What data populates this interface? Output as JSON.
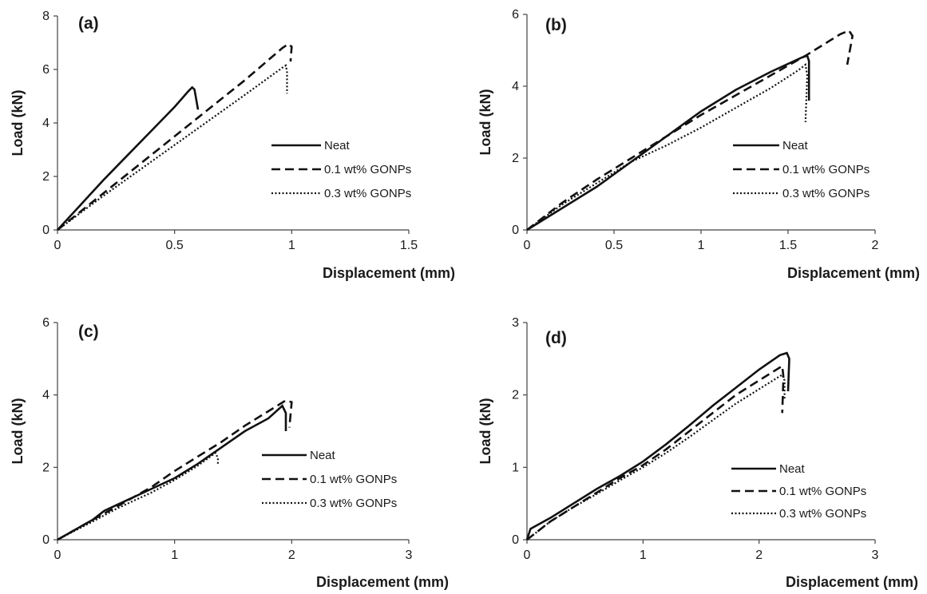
{
  "chart_data": [
    {
      "panel": "(a)",
      "type": "line",
      "xlabel": "Displacement (mm)",
      "ylabel": "Load (kN)",
      "xlim": [
        0,
        1.5
      ],
      "ylim": [
        0,
        8
      ],
      "xticks": [
        "0",
        "0.5",
        "1",
        "1.5"
      ],
      "yticks": [
        "0",
        "2",
        "4",
        "6",
        "8"
      ],
      "legend": "center-right",
      "series": [
        {
          "name": "Neat",
          "style": "solid",
          "points": [
            [
              0,
              0
            ],
            [
              0.1,
              0.95
            ],
            [
              0.2,
              1.9
            ],
            [
              0.3,
              2.8
            ],
            [
              0.4,
              3.7
            ],
            [
              0.5,
              4.6
            ],
            [
              0.56,
              5.2
            ],
            [
              0.575,
              5.33
            ],
            [
              0.585,
              5.25
            ],
            [
              0.6,
              4.5
            ]
          ]
        },
        {
          "name": "0.1 wt% GONPs",
          "style": "dashed",
          "points": [
            [
              0,
              0
            ],
            [
              0.2,
              1.4
            ],
            [
              0.4,
              2.8
            ],
            [
              0.6,
              4.2
            ],
            [
              0.8,
              5.6
            ],
            [
              0.96,
              6.8
            ],
            [
              0.985,
              6.95
            ],
            [
              1.0,
              6.85
            ],
            [
              0.995,
              6.3
            ]
          ]
        },
        {
          "name": "0.3 wt% GONPs",
          "style": "dotted",
          "points": [
            [
              0,
              0
            ],
            [
              0.2,
              1.3
            ],
            [
              0.4,
              2.55
            ],
            [
              0.6,
              3.8
            ],
            [
              0.8,
              5.05
            ],
            [
              0.965,
              6.1
            ],
            [
              0.975,
              6.15
            ],
            [
              0.98,
              5.9
            ],
            [
              0.98,
              5.1
            ]
          ]
        }
      ]
    },
    {
      "panel": "(b)",
      "type": "line",
      "xlabel": "Displacement (mm)",
      "ylabel": "Load (kN)",
      "xlim": [
        0,
        2
      ],
      "ylim": [
        0,
        6
      ],
      "xticks": [
        "0",
        "0.5",
        "1",
        "1.5",
        "2"
      ],
      "yticks": [
        "0",
        "2",
        "4",
        "6"
      ],
      "legend": "center-right",
      "series": [
        {
          "name": "Neat",
          "style": "solid",
          "points": [
            [
              0,
              0
            ],
            [
              0.2,
              0.6
            ],
            [
              0.4,
              1.2
            ],
            [
              0.6,
              1.9
            ],
            [
              0.8,
              2.6
            ],
            [
              1.0,
              3.3
            ],
            [
              1.2,
              3.9
            ],
            [
              1.4,
              4.4
            ],
            [
              1.58,
              4.8
            ],
            [
              1.61,
              4.85
            ],
            [
              1.62,
              4.7
            ],
            [
              1.62,
              3.6
            ]
          ]
        },
        {
          "name": "0.1 wt% GONPs",
          "style": "dashed",
          "points": [
            [
              0,
              0
            ],
            [
              0.2,
              0.75
            ],
            [
              0.4,
              1.4
            ],
            [
              0.6,
              2.0
            ],
            [
              0.8,
              2.6
            ],
            [
              1.0,
              3.2
            ],
            [
              1.2,
              3.75
            ],
            [
              1.4,
              4.3
            ],
            [
              1.6,
              4.85
            ],
            [
              1.8,
              5.45
            ],
            [
              1.85,
              5.55
            ],
            [
              1.87,
              5.4
            ],
            [
              1.84,
              4.6
            ]
          ]
        },
        {
          "name": "0.3 wt% GONPs",
          "style": "dotted",
          "points": [
            [
              0,
              0
            ],
            [
              0.2,
              0.7
            ],
            [
              0.4,
              1.3
            ],
            [
              0.6,
              1.9
            ],
            [
              0.8,
              2.35
            ],
            [
              1.0,
              2.85
            ],
            [
              1.2,
              3.4
            ],
            [
              1.4,
              3.95
            ],
            [
              1.56,
              4.45
            ],
            [
              1.6,
              4.6
            ],
            [
              1.61,
              4.3
            ],
            [
              1.6,
              3.0
            ]
          ]
        }
      ]
    },
    {
      "panel": "(c)",
      "type": "line",
      "xlabel": "Displacement (mm)",
      "ylabel": "Load (kN)",
      "xlim": [
        0,
        3
      ],
      "ylim": [
        0,
        6
      ],
      "xticks": [
        "0",
        "1",
        "2",
        "3"
      ],
      "yticks": [
        "0",
        "2",
        "4",
        "6"
      ],
      "legend": "center-right",
      "series": [
        {
          "name": "Neat",
          "style": "solid",
          "points": [
            [
              0,
              0
            ],
            [
              0.3,
              0.55
            ],
            [
              0.4,
              0.8
            ],
            [
              0.6,
              1.1
            ],
            [
              0.8,
              1.4
            ],
            [
              1.0,
              1.7
            ],
            [
              1.2,
              2.1
            ],
            [
              1.4,
              2.55
            ],
            [
              1.6,
              3.0
            ],
            [
              1.8,
              3.35
            ],
            [
              1.92,
              3.7
            ],
            [
              1.95,
              3.5
            ],
            [
              1.95,
              3.0
            ]
          ]
        },
        {
          "name": "0.1 wt% GONPs",
          "style": "dashed",
          "points": [
            [
              0,
              0
            ],
            [
              0.3,
              0.55
            ],
            [
              0.5,
              0.9
            ],
            [
              0.8,
              1.45
            ],
            [
              1.0,
              1.9
            ],
            [
              1.2,
              2.3
            ],
            [
              1.4,
              2.7
            ],
            [
              1.6,
              3.15
            ],
            [
              1.8,
              3.55
            ],
            [
              1.95,
              3.85
            ],
            [
              2.0,
              3.8
            ],
            [
              1.98,
              3.1
            ]
          ]
        },
        {
          "name": "0.3 wt% GONPs",
          "style": "dotted",
          "points": [
            [
              0,
              0
            ],
            [
              0.3,
              0.5
            ],
            [
              0.5,
              0.85
            ],
            [
              0.8,
              1.3
            ],
            [
              1.0,
              1.65
            ],
            [
              1.2,
              2.05
            ],
            [
              1.35,
              2.4
            ],
            [
              1.37,
              2.25
            ],
            [
              1.37,
              2.05
            ]
          ]
        }
      ]
    },
    {
      "panel": "(d)",
      "type": "line",
      "xlabel": "Displacement (mm)",
      "ylabel": "Load (kN)",
      "xlim": [
        0,
        3
      ],
      "ylim": [
        0,
        3
      ],
      "xticks": [
        "0",
        "1",
        "2",
        "3"
      ],
      "yticks": [
        "0",
        "1",
        "2",
        "3"
      ],
      "legend": "bottom-right",
      "series": [
        {
          "name": "Neat",
          "style": "solid",
          "points": [
            [
              0,
              0
            ],
            [
              0.03,
              0.15
            ],
            [
              0.2,
              0.3
            ],
            [
              0.4,
              0.5
            ],
            [
              0.6,
              0.7
            ],
            [
              0.8,
              0.88
            ],
            [
              1.0,
              1.08
            ],
            [
              1.2,
              1.32
            ],
            [
              1.4,
              1.58
            ],
            [
              1.6,
              1.85
            ],
            [
              1.8,
              2.1
            ],
            [
              2.0,
              2.35
            ],
            [
              2.18,
              2.55
            ],
            [
              2.24,
              2.58
            ],
            [
              2.26,
              2.5
            ],
            [
              2.25,
              2.05
            ]
          ]
        },
        {
          "name": "0.1 wt% GONPs",
          "style": "dashed",
          "points": [
            [
              0,
              0
            ],
            [
              0.2,
              0.25
            ],
            [
              0.4,
              0.45
            ],
            [
              0.6,
              0.65
            ],
            [
              0.8,
              0.85
            ],
            [
              1.0,
              1.03
            ],
            [
              1.2,
              1.25
            ],
            [
              1.4,
              1.5
            ],
            [
              1.6,
              1.75
            ],
            [
              1.8,
              2.0
            ],
            [
              2.0,
              2.2
            ],
            [
              2.2,
              2.4
            ],
            [
              2.21,
              2.25
            ],
            [
              2.2,
              1.75
            ]
          ]
        },
        {
          "name": "0.3 wt% GONPs",
          "style": "dotted",
          "points": [
            [
              0,
              0
            ],
            [
              0.2,
              0.25
            ],
            [
              0.4,
              0.45
            ],
            [
              0.6,
              0.63
            ],
            [
              0.8,
              0.82
            ],
            [
              1.0,
              1.0
            ],
            [
              1.2,
              1.2
            ],
            [
              1.4,
              1.42
            ],
            [
              1.6,
              1.65
            ],
            [
              1.8,
              1.88
            ],
            [
              2.0,
              2.08
            ],
            [
              2.2,
              2.28
            ],
            [
              2.22,
              2.2
            ],
            [
              2.22,
              1.95
            ]
          ]
        }
      ]
    }
  ]
}
